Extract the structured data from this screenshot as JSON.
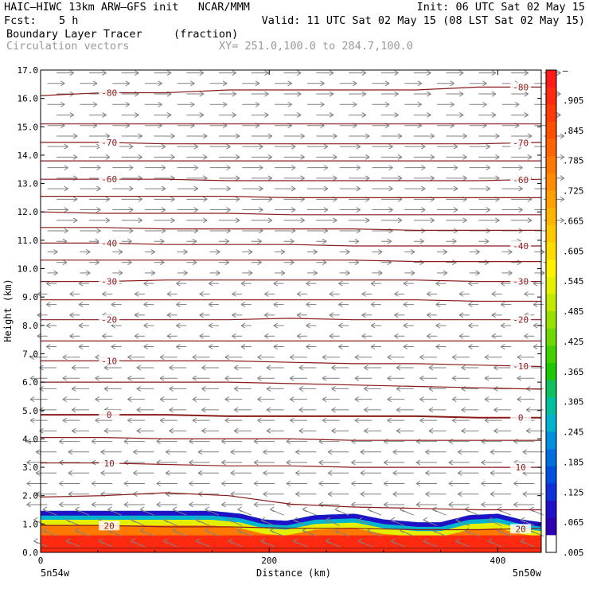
{
  "header": {
    "title_left": "HAIC–HIWC 13km ARW–GFS init   NCAR/MMM",
    "init": "Init: 06 UTC Sat 02 May 15",
    "fcst_label": "Fcst:",
    "fcst_value": "5 h",
    "valid": "Valid: 11 UTC Sat 02 May 15 (08 LST Sat 02 May 15)",
    "field_name": "Boundary Layer Tracer",
    "field_units": "(fraction)",
    "vector_label": "Circulation vectors",
    "xy_range": "XY= 251.0,100.0 to 284.7,100.0"
  },
  "chart_data": {
    "type": "heatmap",
    "xlabel": "Distance (km)",
    "ylabel": "Height (km)",
    "xlim": [
      0,
      438
    ],
    "ylim": [
      0,
      17
    ],
    "x_ticks": [
      "0",
      "200",
      "400"
    ],
    "x_tick_values": [
      0,
      200,
      400
    ],
    "y_ticks": [
      "0.0",
      "1.0",
      "2.0",
      "3.0",
      "4.0",
      "5.0",
      "6.0",
      "7.0",
      "8.0",
      "9.0",
      "10.0",
      "11.0",
      "12.0",
      "13.0",
      "14.0",
      "15.0",
      "16.0",
      "17.0"
    ],
    "x_endpoints": {
      "left": "5n54w",
      "right": "5n50w"
    },
    "temperature_contours": [
      {
        "label": "-80",
        "heights": [
          16.1,
          16.2,
          16.2,
          16.3,
          16.3,
          16.3,
          16.3,
          16.4,
          16.4
        ]
      },
      {
        "label": "",
        "heights": [
          15.1,
          15.1,
          15.1,
          15.1,
          15.1,
          15.1,
          15.1,
          15.1,
          15.1
        ]
      },
      {
        "label": "-70",
        "heights": [
          14.45,
          14.45,
          14.4,
          14.4,
          14.4,
          14.4,
          14.4,
          14.4,
          14.45
        ]
      },
      {
        "label": "",
        "heights": [
          13.8,
          13.8,
          13.8,
          13.8,
          13.8,
          13.8,
          13.8,
          13.8,
          13.8
        ]
      },
      {
        "label": "-60",
        "heights": [
          13.15,
          13.15,
          13.15,
          13.1,
          13.1,
          13.1,
          13.1,
          13.1,
          13.15
        ]
      },
      {
        "label": "",
        "heights": [
          12.55,
          12.55,
          12.55,
          12.55,
          12.5,
          12.5,
          12.5,
          12.5,
          12.5
        ]
      },
      {
        "label": "",
        "heights": [
          12.0,
          11.95,
          11.95,
          11.95,
          11.9,
          11.9,
          11.9,
          11.9,
          11.9
        ]
      },
      {
        "label": "",
        "heights": [
          11.45,
          11.45,
          11.4,
          11.4,
          11.4,
          11.4,
          11.35,
          11.35,
          11.35
        ]
      },
      {
        "label": "-40",
        "heights": [
          10.9,
          10.9,
          10.85,
          10.85,
          10.85,
          10.8,
          10.8,
          10.8,
          10.8
        ]
      },
      {
        "label": "",
        "heights": [
          10.3,
          10.3,
          10.3,
          10.3,
          10.3,
          10.3,
          10.25,
          10.25,
          10.25
        ]
      },
      {
        "label": "-30",
        "heights": [
          9.55,
          9.55,
          9.6,
          9.6,
          9.6,
          9.6,
          9.6,
          9.55,
          9.55
        ]
      },
      {
        "label": "",
        "heights": [
          8.9,
          8.9,
          8.9,
          8.9,
          8.9,
          8.9,
          8.9,
          8.85,
          8.85
        ]
      },
      {
        "label": "-20",
        "heights": [
          8.2,
          8.2,
          8.2,
          8.2,
          8.25,
          8.2,
          8.2,
          8.2,
          8.2
        ]
      },
      {
        "label": "",
        "heights": [
          7.45,
          7.45,
          7.45,
          7.45,
          7.45,
          7.45,
          7.45,
          7.45,
          7.45
        ]
      },
      {
        "label": "-10",
        "heights": [
          6.75,
          6.75,
          6.75,
          6.75,
          6.7,
          6.65,
          6.65,
          6.6,
          6.55
        ]
      },
      {
        "label": "",
        "heights": [
          6.0,
          6.0,
          6.0,
          6.0,
          5.95,
          5.9,
          5.85,
          5.8,
          5.75
        ]
      },
      {
        "label": "0",
        "heights": [
          4.85,
          4.85,
          4.85,
          4.8,
          4.8,
          4.8,
          4.8,
          4.75,
          4.75
        ]
      },
      {
        "label": "",
        "heights": [
          4.05,
          4.05,
          4.0,
          4.0,
          4.0,
          3.95,
          3.95,
          3.95,
          3.95
        ]
      },
      {
        "label": "10",
        "heights": [
          3.15,
          3.15,
          3.1,
          3.05,
          3.05,
          3.0,
          3.0,
          3.0,
          3.0
        ]
      },
      {
        "label": "",
        "heights": [
          1.95,
          2.0,
          2.1,
          2.0,
          1.7,
          1.6,
          1.55,
          1.5,
          1.5
        ]
      },
      {
        "label": "20",
        "heights": [
          0.95,
          0.95,
          0.9,
          0.9,
          0.85,
          0.85,
          0.8,
          0.8,
          0.85
        ]
      },
      {
        "label": "",
        "heights": [
          0.15,
          0.15,
          0.15,
          0.15,
          0.15,
          0.15,
          0.15,
          0.15,
          0.15
        ]
      }
    ],
    "tracer_layer": {
      "x": [
        0,
        40,
        80,
        120,
        150,
        175,
        195,
        215,
        240,
        275,
        300,
        330,
        350,
        375,
        400,
        420,
        438
      ],
      "top_height_km": [
        1.45,
        1.45,
        1.45,
        1.45,
        1.45,
        1.35,
        1.15,
        1.1,
        1.3,
        1.35,
        1.15,
        1.05,
        1.05,
        1.3,
        1.35,
        1.15,
        1.05
      ],
      "levels": [
        {
          "z": 1.1,
          "value": 0.045
        },
        {
          "z": 0.95,
          "value": 0.25
        },
        {
          "z": 0.8,
          "value": 0.55
        },
        {
          "z": 0.6,
          "value": 0.8
        },
        {
          "z": 0.0,
          "value": 0.98
        }
      ]
    },
    "colorbar": {
      "labels": [
        "–",
        ".905",
        ".845",
        ".785",
        ".725",
        ".665",
        ".605",
        ".545",
        ".485",
        ".425",
        ".365",
        ".305",
        ".245",
        ".185",
        ".125",
        ".065",
        ".005"
      ],
      "colors": [
        "#ff1a1a",
        "#ff2a10",
        "#ff3c05",
        "#ff5000",
        "#ff6400",
        "#ff7800",
        "#ff8c00",
        "#ffa000",
        "#ffb400",
        "#ffc800",
        "#ffdc00",
        "#fff000",
        "#e4f000",
        "#c0e800",
        "#98e000",
        "#6ed800",
        "#44d000",
        "#20c800",
        "#10c060",
        "#00c0a0",
        "#00b4d0",
        "#0090e0",
        "#0070e0",
        "#0050e0",
        "#1030d8",
        "#2010c8",
        "#3000b0",
        "#ffffff"
      ]
    },
    "wind_bands": [
      {
        "z_min": 15.0,
        "z_max": 17.0,
        "u": 0.8,
        "w": 0.0
      },
      {
        "z_min": 11.0,
        "z_max": 15.0,
        "u": 1.0,
        "w": 0.0
      },
      {
        "z_min": 9.5,
        "z_max": 11.0,
        "u": 0.4,
        "w": 0.0
      },
      {
        "z_min": 7.0,
        "z_max": 9.5,
        "u": -0.4,
        "w": 0.0
      },
      {
        "z_min": 4.0,
        "z_max": 7.0,
        "u": -0.8,
        "w": 0.0
      },
      {
        "z_min": 1.5,
        "z_max": 4.0,
        "u": -1.0,
        "w": 0.0
      },
      {
        "z_min": 0.0,
        "z_max": 1.5,
        "u": -0.6,
        "w": -0.6
      }
    ]
  }
}
